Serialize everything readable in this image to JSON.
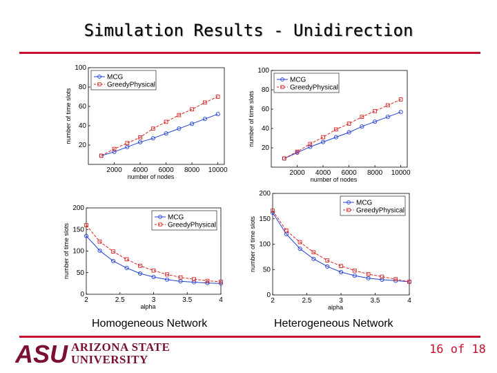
{
  "slide": {
    "title": "Simulation Results - Unidirection",
    "page_label": "16 of 18",
    "caption_left": "Homogeneous Network",
    "caption_right": "Heterogeneous Network",
    "logo_mark": "ASU",
    "logo_line1": "ARIZONA STATE",
    "logo_line2": "UNIVERSITY",
    "accent_color": "#c8102e",
    "mcg_color": "#1f3fd6",
    "greedy_color": "#d62020"
  },
  "chart_data": [
    {
      "type": "line",
      "id": "top-left",
      "title": "",
      "xlabel": "number of nodes",
      "ylabel": "number of time slots",
      "xlim": [
        0,
        10500
      ],
      "ylim": [
        0,
        100
      ],
      "xticks": [
        2000,
        4000,
        6000,
        8000,
        10000
      ],
      "yticks": [
        20,
        40,
        60,
        80,
        100
      ],
      "legend": [
        "MCG",
        "GreedyPhysical"
      ],
      "legend_position": "top-left",
      "series": [
        {
          "name": "MCG",
          "x": [
            1000,
            2000,
            3000,
            4000,
            5000,
            6000,
            7000,
            8000,
            9000,
            10000
          ],
          "values": [
            9,
            13,
            18,
            23,
            27,
            32,
            37,
            42,
            47,
            52
          ]
        },
        {
          "name": "GreedyPhysical",
          "x": [
            1000,
            2000,
            3000,
            4000,
            5000,
            6000,
            7000,
            8000,
            9000,
            10000
          ],
          "values": [
            9,
            16,
            22,
            28,
            37,
            44,
            51,
            57,
            64,
            70
          ]
        }
      ]
    },
    {
      "type": "line",
      "id": "top-right",
      "title": "",
      "xlabel": "number of nodes",
      "ylabel": "number of time slots",
      "xlim": [
        0,
        10500
      ],
      "ylim": [
        0,
        100
      ],
      "xticks": [
        2000,
        4000,
        6000,
        8000,
        10000
      ],
      "yticks": [
        20,
        40,
        60,
        80,
        100
      ],
      "legend": [
        "MCG",
        "GreedyPhysical"
      ],
      "legend_position": "top-left",
      "series": [
        {
          "name": "MCG",
          "x": [
            1000,
            2000,
            3000,
            4000,
            5000,
            6000,
            7000,
            8000,
            9000,
            10000
          ],
          "values": [
            9,
            15,
            21,
            26,
            31,
            36,
            42,
            47,
            52,
            57
          ]
        },
        {
          "name": "GreedyPhysical",
          "x": [
            1000,
            2000,
            3000,
            4000,
            5000,
            6000,
            7000,
            8000,
            9000,
            10000
          ],
          "values": [
            9,
            16,
            24,
            31,
            39,
            45,
            52,
            58,
            64,
            70
          ]
        }
      ]
    },
    {
      "type": "line",
      "id": "bottom-left",
      "title": "",
      "xlabel": "alpha",
      "ylabel": "number of time slots",
      "xlim": [
        2,
        4
      ],
      "ylim": [
        0,
        200
      ],
      "xticks": [
        2,
        2.5,
        3,
        3.5,
        4
      ],
      "yticks": [
        0,
        50,
        100,
        150,
        200
      ],
      "legend": [
        "MCG",
        "GreedyPhysical"
      ],
      "legend_position": "top-right",
      "series": [
        {
          "name": "MCG",
          "x": [
            2,
            2.2,
            2.4,
            2.6,
            2.8,
            3,
            3.2,
            3.4,
            3.6,
            3.8,
            4
          ],
          "values": [
            135,
            101,
            77,
            61,
            48,
            40,
            34,
            30,
            28,
            26,
            25
          ]
        },
        {
          "name": "GreedyPhysical",
          "x": [
            2,
            2.2,
            2.4,
            2.6,
            2.8,
            3,
            3.2,
            3.4,
            3.6,
            3.8,
            4
          ],
          "values": [
            160,
            122,
            99,
            81,
            66,
            55,
            46,
            39,
            35,
            31,
            29
          ]
        }
      ]
    },
    {
      "type": "line",
      "id": "bottom-right",
      "title": "",
      "xlabel": "alpha",
      "ylabel": "number of time slots",
      "xlim": [
        2,
        4
      ],
      "ylim": [
        0,
        200
      ],
      "xticks": [
        2,
        2.5,
        3,
        3.5,
        4
      ],
      "yticks": [
        0,
        50,
        100,
        150,
        200
      ],
      "legend": [
        "MCG",
        "GreedyPhysical"
      ],
      "legend_position": "top-right",
      "series": [
        {
          "name": "MCG",
          "x": [
            2,
            2.2,
            2.4,
            2.6,
            2.8,
            3,
            3.2,
            3.4,
            3.6,
            3.8,
            4
          ],
          "values": [
            162,
            120,
            91,
            71,
            56,
            45,
            38,
            33,
            30,
            28,
            26
          ]
        },
        {
          "name": "GreedyPhysical",
          "x": [
            2,
            2.2,
            2.4,
            2.6,
            2.8,
            3,
            3.2,
            3.4,
            3.6,
            3.8,
            4
          ],
          "values": [
            166,
            127,
            104,
            84,
            68,
            57,
            48,
            41,
            36,
            31,
            26
          ]
        }
      ]
    }
  ]
}
